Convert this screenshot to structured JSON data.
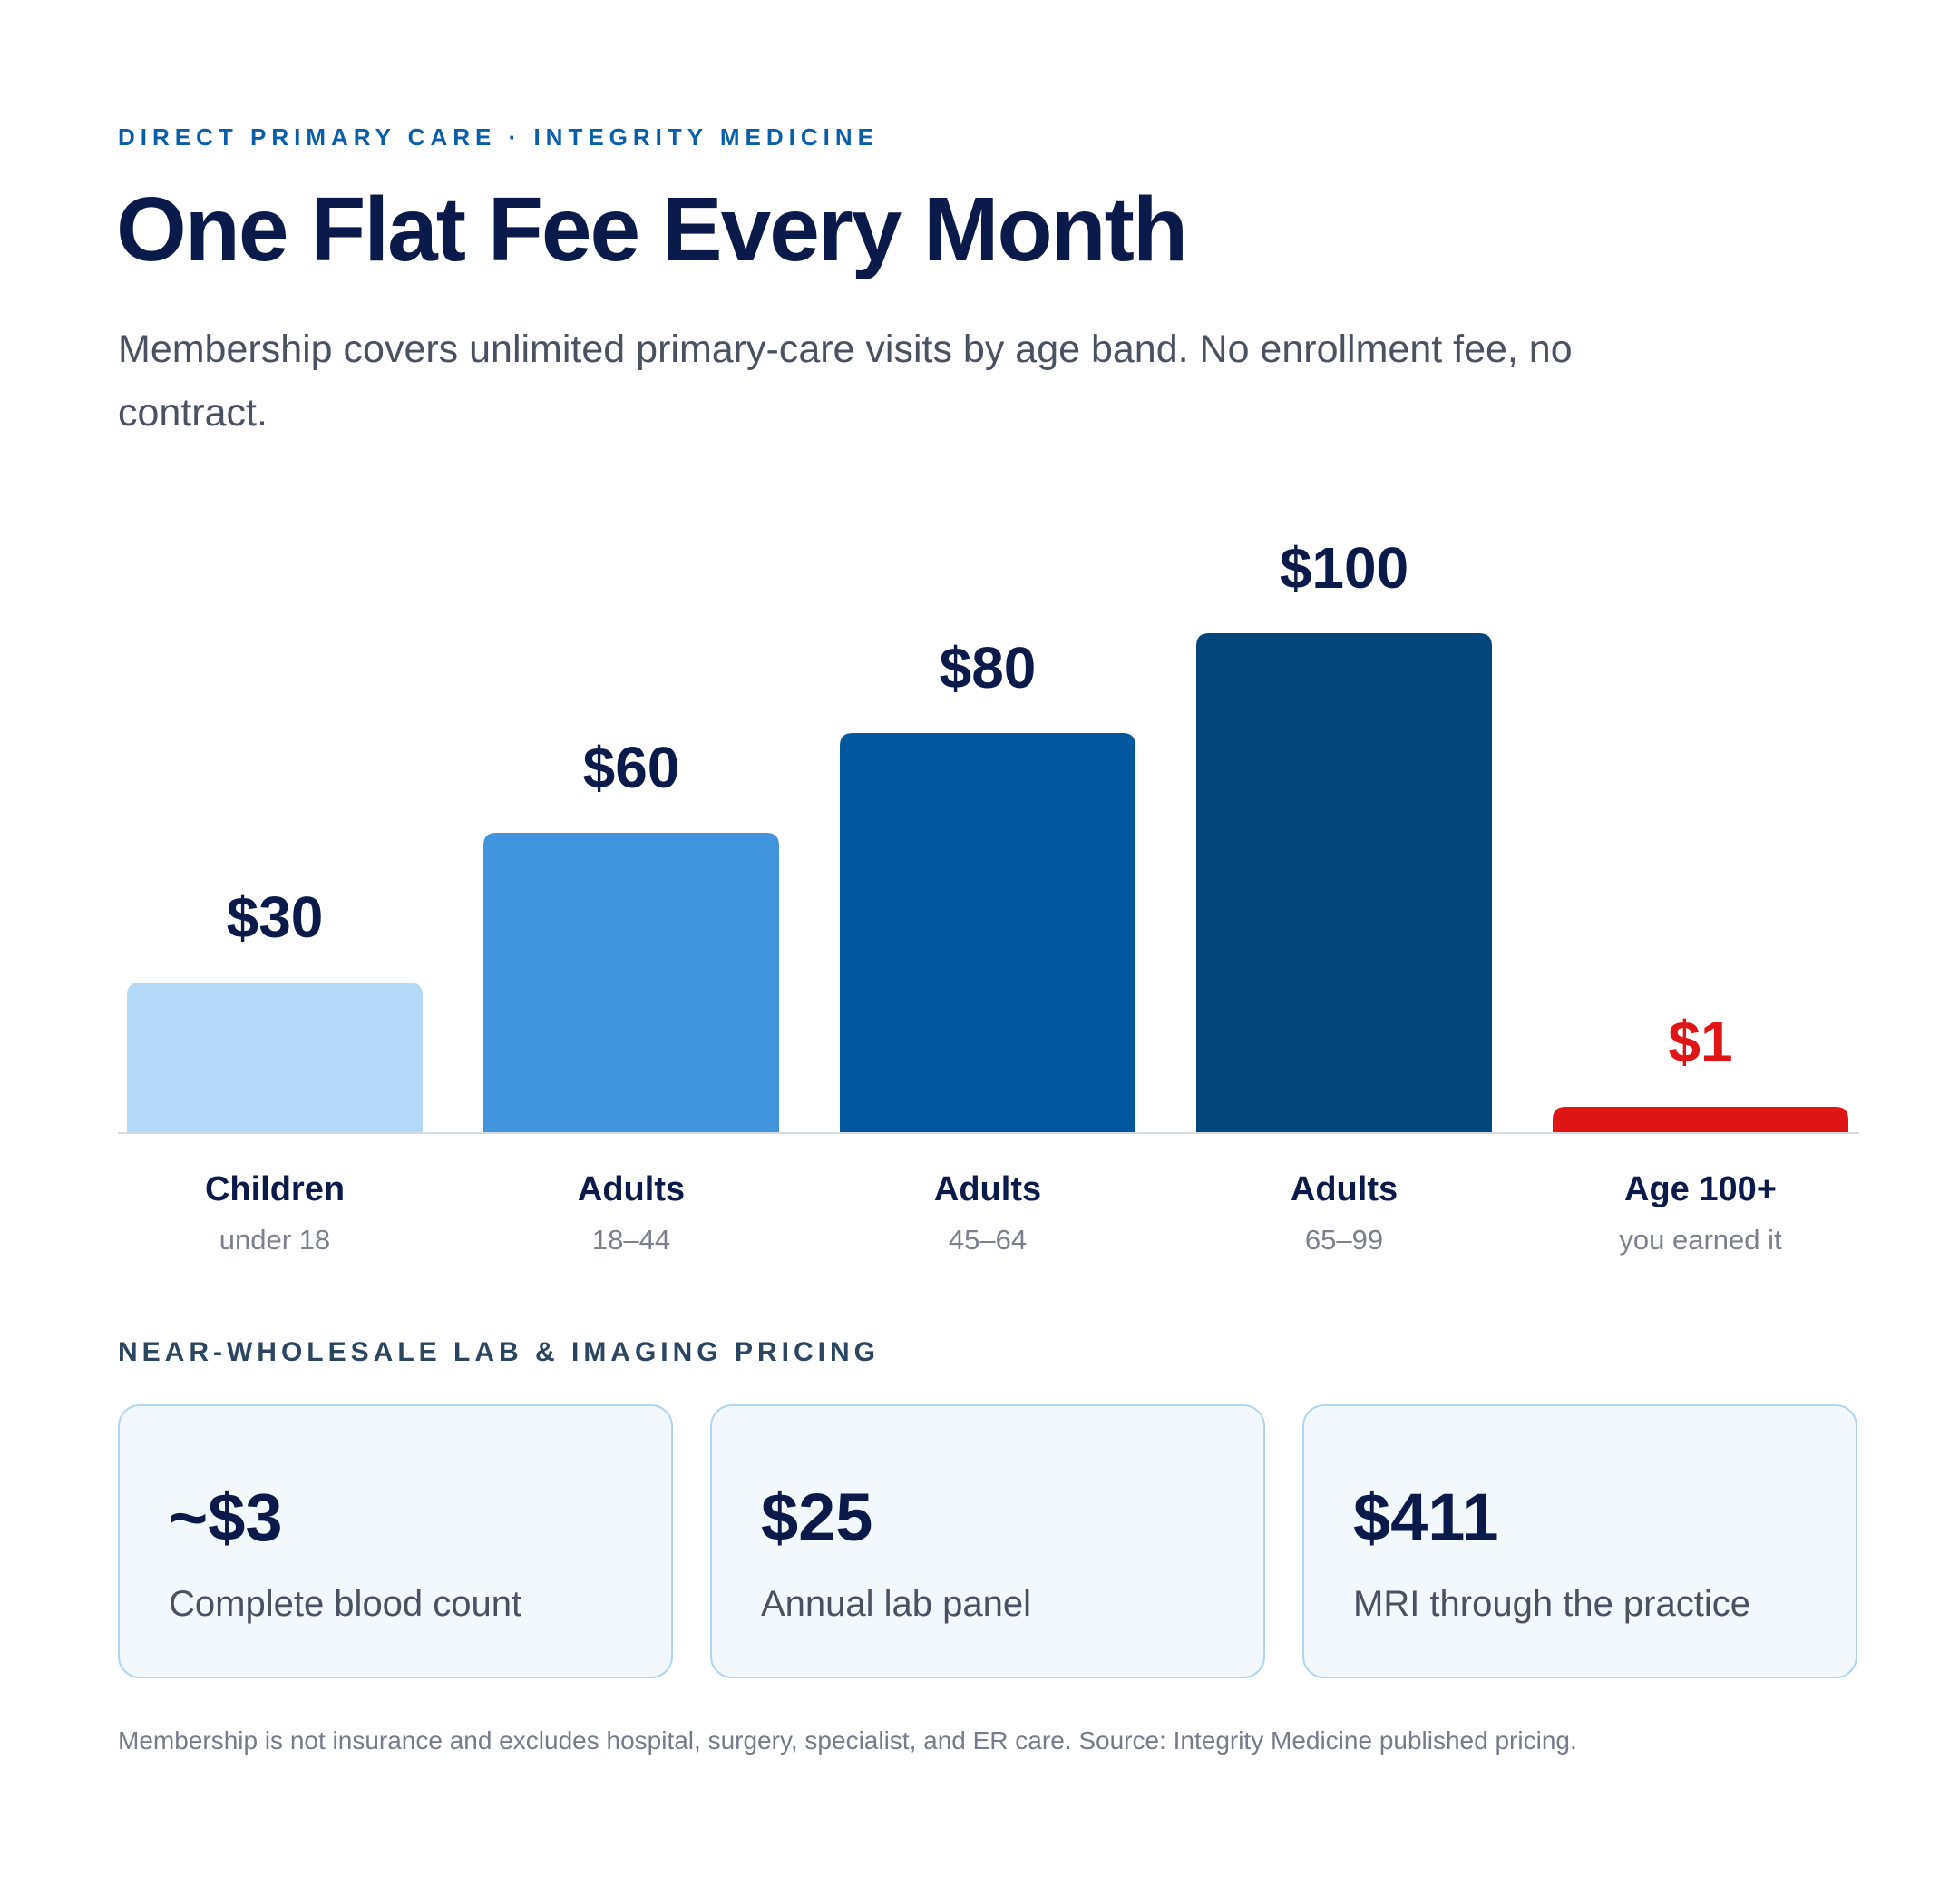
{
  "header": {
    "eyebrow": "DIRECT PRIMARY CARE · INTEGRITY MEDICINE",
    "title": "One Flat Fee Every Month",
    "subtitle": "Membership covers unlimited primary-care visits by age band. No enrollment fee, no contract."
  },
  "chart_data": {
    "type": "bar",
    "categories": [
      "Children",
      "Adults",
      "Adults",
      "Adults",
      "Age 100+"
    ],
    "sublabels": [
      "under 18",
      "18–44",
      "45–64",
      "65–99",
      "you earned it"
    ],
    "values": [
      30,
      60,
      80,
      100,
      1
    ],
    "value_labels": [
      "$30",
      "$60",
      "$80",
      "$100",
      "$1"
    ],
    "colors": [
      "#b3d9fa",
      "#4294dc",
      "#03589d",
      "#03467b",
      "#e01515"
    ],
    "value_label_colors": [
      "#0c1a4b",
      "#0c1a4b",
      "#0c1a4b",
      "#0c1a4b",
      "#e01515"
    ],
    "ylim": [
      0,
      100
    ],
    "grid": false,
    "legend": "none"
  },
  "pricing": {
    "label": "NEAR-WHOLESALE LAB & IMAGING PRICING",
    "cards": [
      {
        "price": "~$3",
        "desc": "Complete blood count"
      },
      {
        "price": "$25",
        "desc": "Annual lab panel"
      },
      {
        "price": "$411",
        "desc": "MRI through the practice"
      }
    ]
  },
  "footnote": "Membership is not insurance and excludes hospital, surgery, specialist, and ER care. Source: Integrity Medicine published pricing."
}
